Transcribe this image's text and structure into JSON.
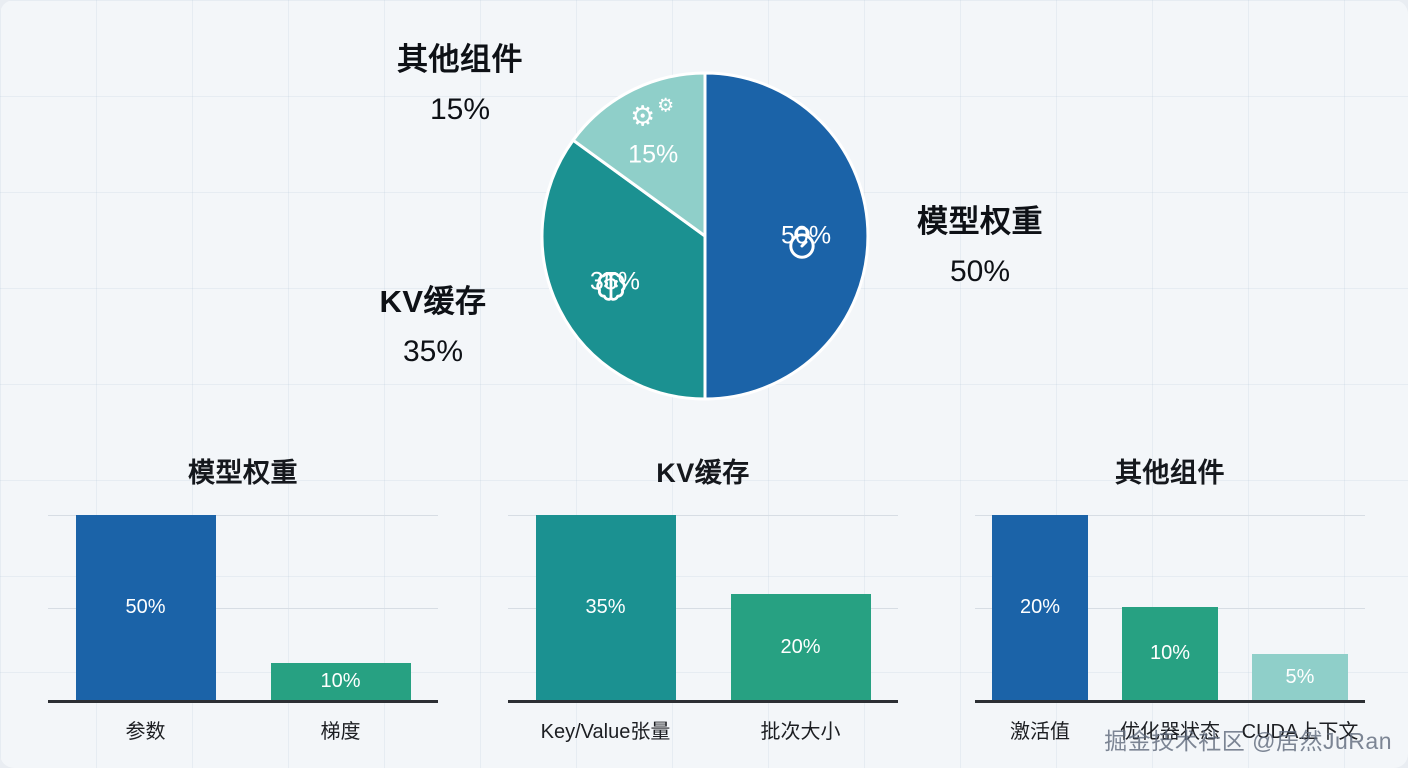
{
  "watermark": "掘金技术社区 @居然JuRan",
  "chart_data": [
    {
      "type": "pie",
      "title": "",
      "legend_position": "outside",
      "start_angle_deg": 0,
      "direction": "clockwise",
      "slices": [
        {
          "label": "模型权重",
          "value": 50,
          "pct": "50%",
          "color": "#1b63a8",
          "icon": "weight-icon"
        },
        {
          "label": "KV缓存",
          "value": 35,
          "pct": "35%",
          "color": "#1b9191",
          "icon": "brain-icon"
        },
        {
          "label": "其他组件",
          "value": 15,
          "pct": "15%",
          "color": "#8fcfc9",
          "icon": "gears-icon"
        }
      ]
    },
    {
      "type": "bar",
      "title": "模型权重",
      "categories": [
        "参数",
        "梯度"
      ],
      "values": [
        50,
        10
      ],
      "colors": [
        "#1b63a8",
        "#27a182"
      ],
      "value_suffix": "%",
      "ylim": [
        0,
        50
      ],
      "grid": true
    },
    {
      "type": "bar",
      "title": "KV缓存",
      "categories": [
        "Key/Value张量",
        "批次大小"
      ],
      "values": [
        35,
        20
      ],
      "colors": [
        "#1b9191",
        "#27a182"
      ],
      "value_suffix": "%",
      "ylim": [
        0,
        35
      ],
      "grid": true
    },
    {
      "type": "bar",
      "title": "其他组件",
      "categories": [
        "激活值",
        "优化器状态",
        "CUDA上下文"
      ],
      "values": [
        20,
        10,
        5
      ],
      "colors": [
        "#1b63a8",
        "#27a182",
        "#8fcfc9"
      ],
      "value_suffix": "%",
      "ylim": [
        0,
        20
      ],
      "grid": true
    }
  ]
}
